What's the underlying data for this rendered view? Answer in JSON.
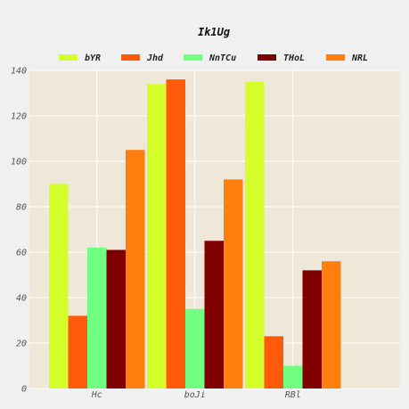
{
  "chart_data": {
    "type": "bar",
    "title": "Ik1Ug",
    "xlabel": "",
    "ylabel": "",
    "categories": [
      "Hc",
      "boJi",
      "RBl"
    ],
    "ylim": [
      0,
      140
    ],
    "yticks": [
      0,
      20,
      40,
      60,
      80,
      100,
      120,
      140
    ],
    "grid": true,
    "legend_position": "top",
    "series": [
      {
        "name": "bYR",
        "color": "#d4ff2a",
        "values": [
          90,
          134,
          135
        ]
      },
      {
        "name": "Jhd",
        "color": "#ff5a0a",
        "values": [
          32,
          136,
          23
        ]
      },
      {
        "name": "NnTCu",
        "color": "#70ff80",
        "values": [
          62,
          35,
          10
        ]
      },
      {
        "name": "THoL",
        "color": "#800000",
        "values": [
          61,
          65,
          52
        ]
      },
      {
        "name": "NRL",
        "color": "#ff7f0e",
        "values": [
          105,
          92,
          56
        ]
      }
    ],
    "plot_background": "#efe7d7",
    "page_background": "#f0f0f0"
  }
}
